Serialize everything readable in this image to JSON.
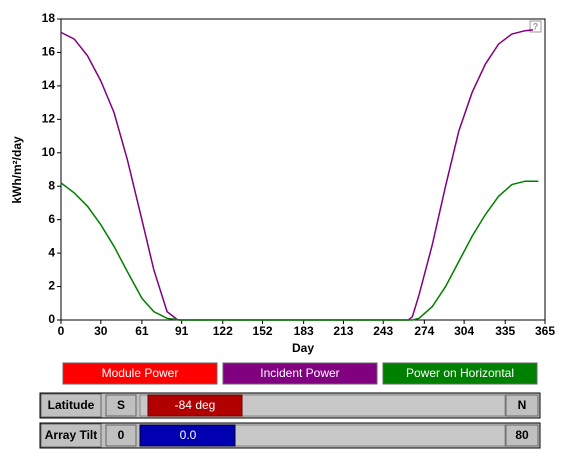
{
  "chart_data": {
    "type": "line",
    "xlabel": "Day",
    "ylabel": "kWh/m²/day",
    "xlim": [
      0,
      365
    ],
    "xticks": [
      0,
      30,
      61,
      91,
      122,
      152,
      183,
      213,
      243,
      274,
      304,
      335,
      365
    ],
    "ylim": [
      0,
      18
    ],
    "yticks": [
      0,
      2,
      4,
      6,
      8,
      10,
      12,
      14,
      16,
      18
    ],
    "series": [
      {
        "name": "Incident Power",
        "color": "#800080",
        "x": [
          0,
          10,
          20,
          30,
          40,
          50,
          61,
          70,
          80,
          88,
          120,
          180,
          240,
          262,
          265,
          270,
          280,
          290,
          300,
          310,
          320,
          330,
          340,
          350,
          356
        ],
        "values": [
          17.2,
          16.8,
          15.8,
          14.3,
          12.4,
          9.6,
          6.0,
          3.0,
          0.5,
          0,
          0,
          0,
          0,
          0,
          0.2,
          1.5,
          4.5,
          8.0,
          11.3,
          13.6,
          15.3,
          16.5,
          17.1,
          17.3,
          17.35
        ]
      },
      {
        "name": "Power on Horizontal",
        "color": "#008000",
        "x": [
          0,
          10,
          20,
          30,
          40,
          50,
          61,
          70,
          80,
          90,
          120,
          180,
          240,
          265,
          270,
          280,
          290,
          300,
          310,
          320,
          330,
          340,
          350,
          360
        ],
        "values": [
          8.2,
          7.6,
          6.8,
          5.7,
          4.4,
          2.9,
          1.3,
          0.5,
          0.1,
          0,
          0,
          0,
          0,
          0,
          0.1,
          0.8,
          2.0,
          3.5,
          5.0,
          6.3,
          7.4,
          8.1,
          8.3,
          8.3
        ]
      }
    ],
    "buttons": [
      {
        "name": "Module Power",
        "color": "#ff0000"
      },
      {
        "name": "Incident Power",
        "color": "#800080"
      },
      {
        "name": "Power on Horizontal",
        "color": "#008000"
      }
    ]
  },
  "controls": {
    "help": "?",
    "latitude": {
      "label": "Latitude",
      "min_label": "S",
      "value_label": "-84 deg",
      "max_label": "N",
      "color": "#b00000"
    },
    "tilt": {
      "label": "Array Tilt",
      "min_label": "0",
      "value_label": "0.0",
      "max_label": "80",
      "color": "#0000b0"
    }
  }
}
